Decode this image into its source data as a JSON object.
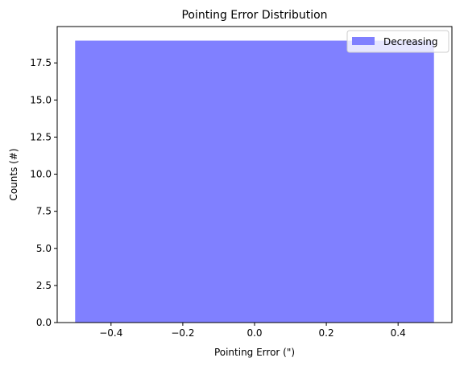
{
  "chart_data": {
    "type": "bar",
    "title": "Pointing Error Distribution",
    "xlabel": "Pointing Error (\")",
    "ylabel": "Counts (#)",
    "xlim": [
      -0.55,
      0.55
    ],
    "ylim": [
      0,
      19.95
    ],
    "xticks": [
      -0.4,
      -0.2,
      0.0,
      0.2,
      0.4
    ],
    "xtick_labels": [
      "−0.4",
      "−0.2",
      "0.0",
      "0.2",
      "0.4"
    ],
    "yticks": [
      0,
      2.5,
      5,
      7.5,
      10,
      12.5,
      15,
      17.5
    ],
    "ytick_labels": [
      "0.0",
      "2.5",
      "5.0",
      "7.5",
      "10.0",
      "12.5",
      "15.0",
      "17.5"
    ],
    "grid": false,
    "legend_position": "top-right",
    "series": [
      {
        "name": "Decreasing",
        "color": "#8080ff",
        "bins": [
          {
            "x_start": -0.5,
            "x_end": 0.5,
            "value": 19
          }
        ]
      }
    ]
  }
}
